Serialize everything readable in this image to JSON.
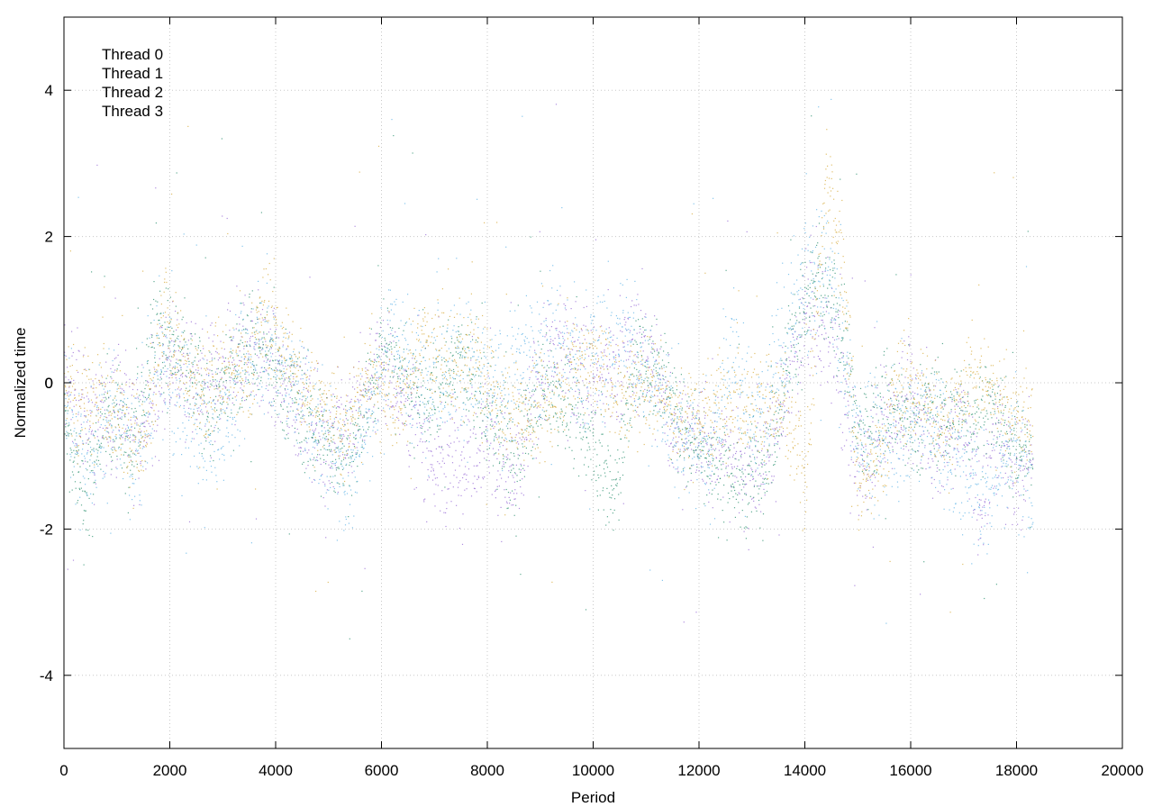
{
  "chart_data": {
    "type": "scatter",
    "title": "",
    "xlabel": "Period",
    "ylabel": "Normalized time",
    "xlim": [
      0,
      20000
    ],
    "ylim": [
      -5,
      5
    ],
    "x_ticks": [
      0,
      2000,
      4000,
      6000,
      8000,
      10000,
      12000,
      14000,
      16000,
      18000,
      20000
    ],
    "y_ticks": [
      -4,
      -2,
      0,
      2,
      4
    ],
    "grid": true,
    "legend_position": "top-left",
    "x_range_of_points": [
      0,
      18300
    ],
    "series": [
      {
        "name": "Thread 0",
        "color": "#9467d4",
        "trend": [
          [
            0,
            0.0
          ],
          [
            500,
            -0.5
          ],
          [
            1000,
            -0.3
          ],
          [
            1500,
            -0.6
          ],
          [
            2000,
            0.4
          ],
          [
            2500,
            -0.1
          ],
          [
            3000,
            0.0
          ],
          [
            3500,
            0.5
          ],
          [
            4000,
            0.2
          ],
          [
            4500,
            -0.4
          ],
          [
            5000,
            -0.8
          ],
          [
            5500,
            -0.5
          ],
          [
            6000,
            0.4
          ],
          [
            6500,
            -0.3
          ],
          [
            7000,
            -1.1
          ],
          [
            7500,
            -1.0
          ],
          [
            8000,
            -0.6
          ],
          [
            8500,
            -1.4
          ],
          [
            9000,
            0.2
          ],
          [
            9500,
            0.5
          ],
          [
            10000,
            0.0
          ],
          [
            10500,
            0.3
          ],
          [
            11000,
            0.5
          ],
          [
            11500,
            -0.6
          ],
          [
            12000,
            -0.8
          ],
          [
            12500,
            -0.9
          ],
          [
            13000,
            -1.2
          ],
          [
            13500,
            -0.6
          ],
          [
            14000,
            1.0
          ],
          [
            14500,
            0.6
          ],
          [
            15000,
            -1.2
          ],
          [
            15500,
            -0.5
          ],
          [
            16000,
            -0.2
          ],
          [
            16500,
            -0.8
          ],
          [
            17000,
            -0.5
          ],
          [
            17300,
            -1.7
          ],
          [
            17600,
            -0.7
          ],
          [
            18000,
            -1.2
          ],
          [
            18300,
            -0.9
          ]
        ],
        "spread": 0.4
      },
      {
        "name": "Thread 1",
        "color": "#2a8f6e",
        "trend": [
          [
            0,
            -0.5
          ],
          [
            400,
            -1.6
          ],
          [
            800,
            -0.3
          ],
          [
            1300,
            -0.8
          ],
          [
            1700,
            0.8
          ],
          [
            2200,
            0.4
          ],
          [
            2800,
            -0.4
          ],
          [
            3400,
            0.5
          ],
          [
            3800,
            0.4
          ],
          [
            4400,
            -0.3
          ],
          [
            5000,
            -0.9
          ],
          [
            5500,
            -0.9
          ],
          [
            6000,
            0.6
          ],
          [
            6500,
            0.0
          ],
          [
            7000,
            -0.2
          ],
          [
            7500,
            0.4
          ],
          [
            8000,
            -0.4
          ],
          [
            8500,
            -1.2
          ],
          [
            9000,
            0.0
          ],
          [
            9500,
            -0.3
          ],
          [
            10000,
            -0.8
          ],
          [
            10400,
            -1.5
          ],
          [
            10800,
            0.3
          ],
          [
            11300,
            0.1
          ],
          [
            11800,
            -0.7
          ],
          [
            12300,
            -1.1
          ],
          [
            12800,
            -1.4
          ],
          [
            13300,
            -1.0
          ],
          [
            13700,
            0.5
          ],
          [
            14200,
            1.4
          ],
          [
            14700,
            0.8
          ],
          [
            15000,
            -0.8
          ],
          [
            15500,
            -0.3
          ],
          [
            16000,
            -0.6
          ],
          [
            16500,
            -0.4
          ],
          [
            17000,
            -0.5
          ],
          [
            17500,
            -0.3
          ],
          [
            18000,
            -0.9
          ],
          [
            18300,
            -1.0
          ]
        ],
        "spread": 0.35
      },
      {
        "name": "Thread 2",
        "color": "#5cb2e6",
        "trend": [
          [
            0,
            -0.3
          ],
          [
            400,
            -0.9
          ],
          [
            900,
            -0.5
          ],
          [
            1400,
            -0.9
          ],
          [
            1800,
            0.3
          ],
          [
            2300,
            -0.4
          ],
          [
            2900,
            -0.7
          ],
          [
            3300,
            0.1
          ],
          [
            3800,
            0.6
          ],
          [
            4300,
            0.0
          ],
          [
            4800,
            -0.6
          ],
          [
            5300,
            -1.2
          ],
          [
            5700,
            -0.6
          ],
          [
            6200,
            0.7
          ],
          [
            6700,
            0.0
          ],
          [
            7200,
            0.3
          ],
          [
            7700,
            0.2
          ],
          [
            8200,
            -0.2
          ],
          [
            8700,
            0.3
          ],
          [
            9200,
            0.6
          ],
          [
            9700,
            0.2
          ],
          [
            10200,
            0.4
          ],
          [
            10700,
            0.6
          ],
          [
            11200,
            -0.2
          ],
          [
            11700,
            -0.7
          ],
          [
            12200,
            -0.9
          ],
          [
            12600,
            0.5
          ],
          [
            13000,
            -0.7
          ],
          [
            13500,
            0.2
          ],
          [
            14000,
            1.3
          ],
          [
            14500,
            1.5
          ],
          [
            14900,
            -0.5
          ],
          [
            15300,
            -0.9
          ],
          [
            15800,
            -0.6
          ],
          [
            16200,
            -0.4
          ],
          [
            16700,
            -0.9
          ],
          [
            17200,
            -1.4
          ],
          [
            17600,
            -1.3
          ],
          [
            18000,
            -0.7
          ],
          [
            18300,
            -1.8
          ]
        ],
        "spread": 0.45
      },
      {
        "name": "Thread 3",
        "color": "#d7a93a",
        "trend": [
          [
            0,
            0.1
          ],
          [
            300,
            -0.4
          ],
          [
            600,
            0.0
          ],
          [
            1000,
            -0.4
          ],
          [
            1500,
            -0.9
          ],
          [
            1900,
            0.9
          ],
          [
            2400,
            -0.1
          ],
          [
            2900,
            0.1
          ],
          [
            3500,
            0.2
          ],
          [
            3800,
            1.0
          ],
          [
            4300,
            0.2
          ],
          [
            4800,
            -0.3
          ],
          [
            5300,
            -0.6
          ],
          [
            5800,
            0.2
          ],
          [
            6300,
            -0.3
          ],
          [
            6800,
            0.6
          ],
          [
            7300,
            0.2
          ],
          [
            7800,
            0.3
          ],
          [
            8200,
            -0.3
          ],
          [
            8700,
            -0.4
          ],
          [
            9200,
            -0.3
          ],
          [
            9600,
            0.4
          ],
          [
            10100,
            0.2
          ],
          [
            10600,
            -0.2
          ],
          [
            11100,
            0.1
          ],
          [
            11600,
            -0.5
          ],
          [
            12100,
            -0.4
          ],
          [
            12600,
            -0.2
          ],
          [
            13000,
            -0.2
          ],
          [
            13600,
            -0.4
          ],
          [
            14000,
            -1.3
          ],
          [
            14400,
            2.8
          ],
          [
            14700,
            1.8
          ],
          [
            15000,
            -1.5
          ],
          [
            15400,
            -1.0
          ],
          [
            15800,
            0.0
          ],
          [
            16200,
            -0.2
          ],
          [
            16700,
            -0.6
          ],
          [
            17200,
            0.2
          ],
          [
            17600,
            -0.2
          ],
          [
            18000,
            -0.4
          ],
          [
            18300,
            -0.4
          ]
        ],
        "spread": 0.35
      }
    ]
  }
}
